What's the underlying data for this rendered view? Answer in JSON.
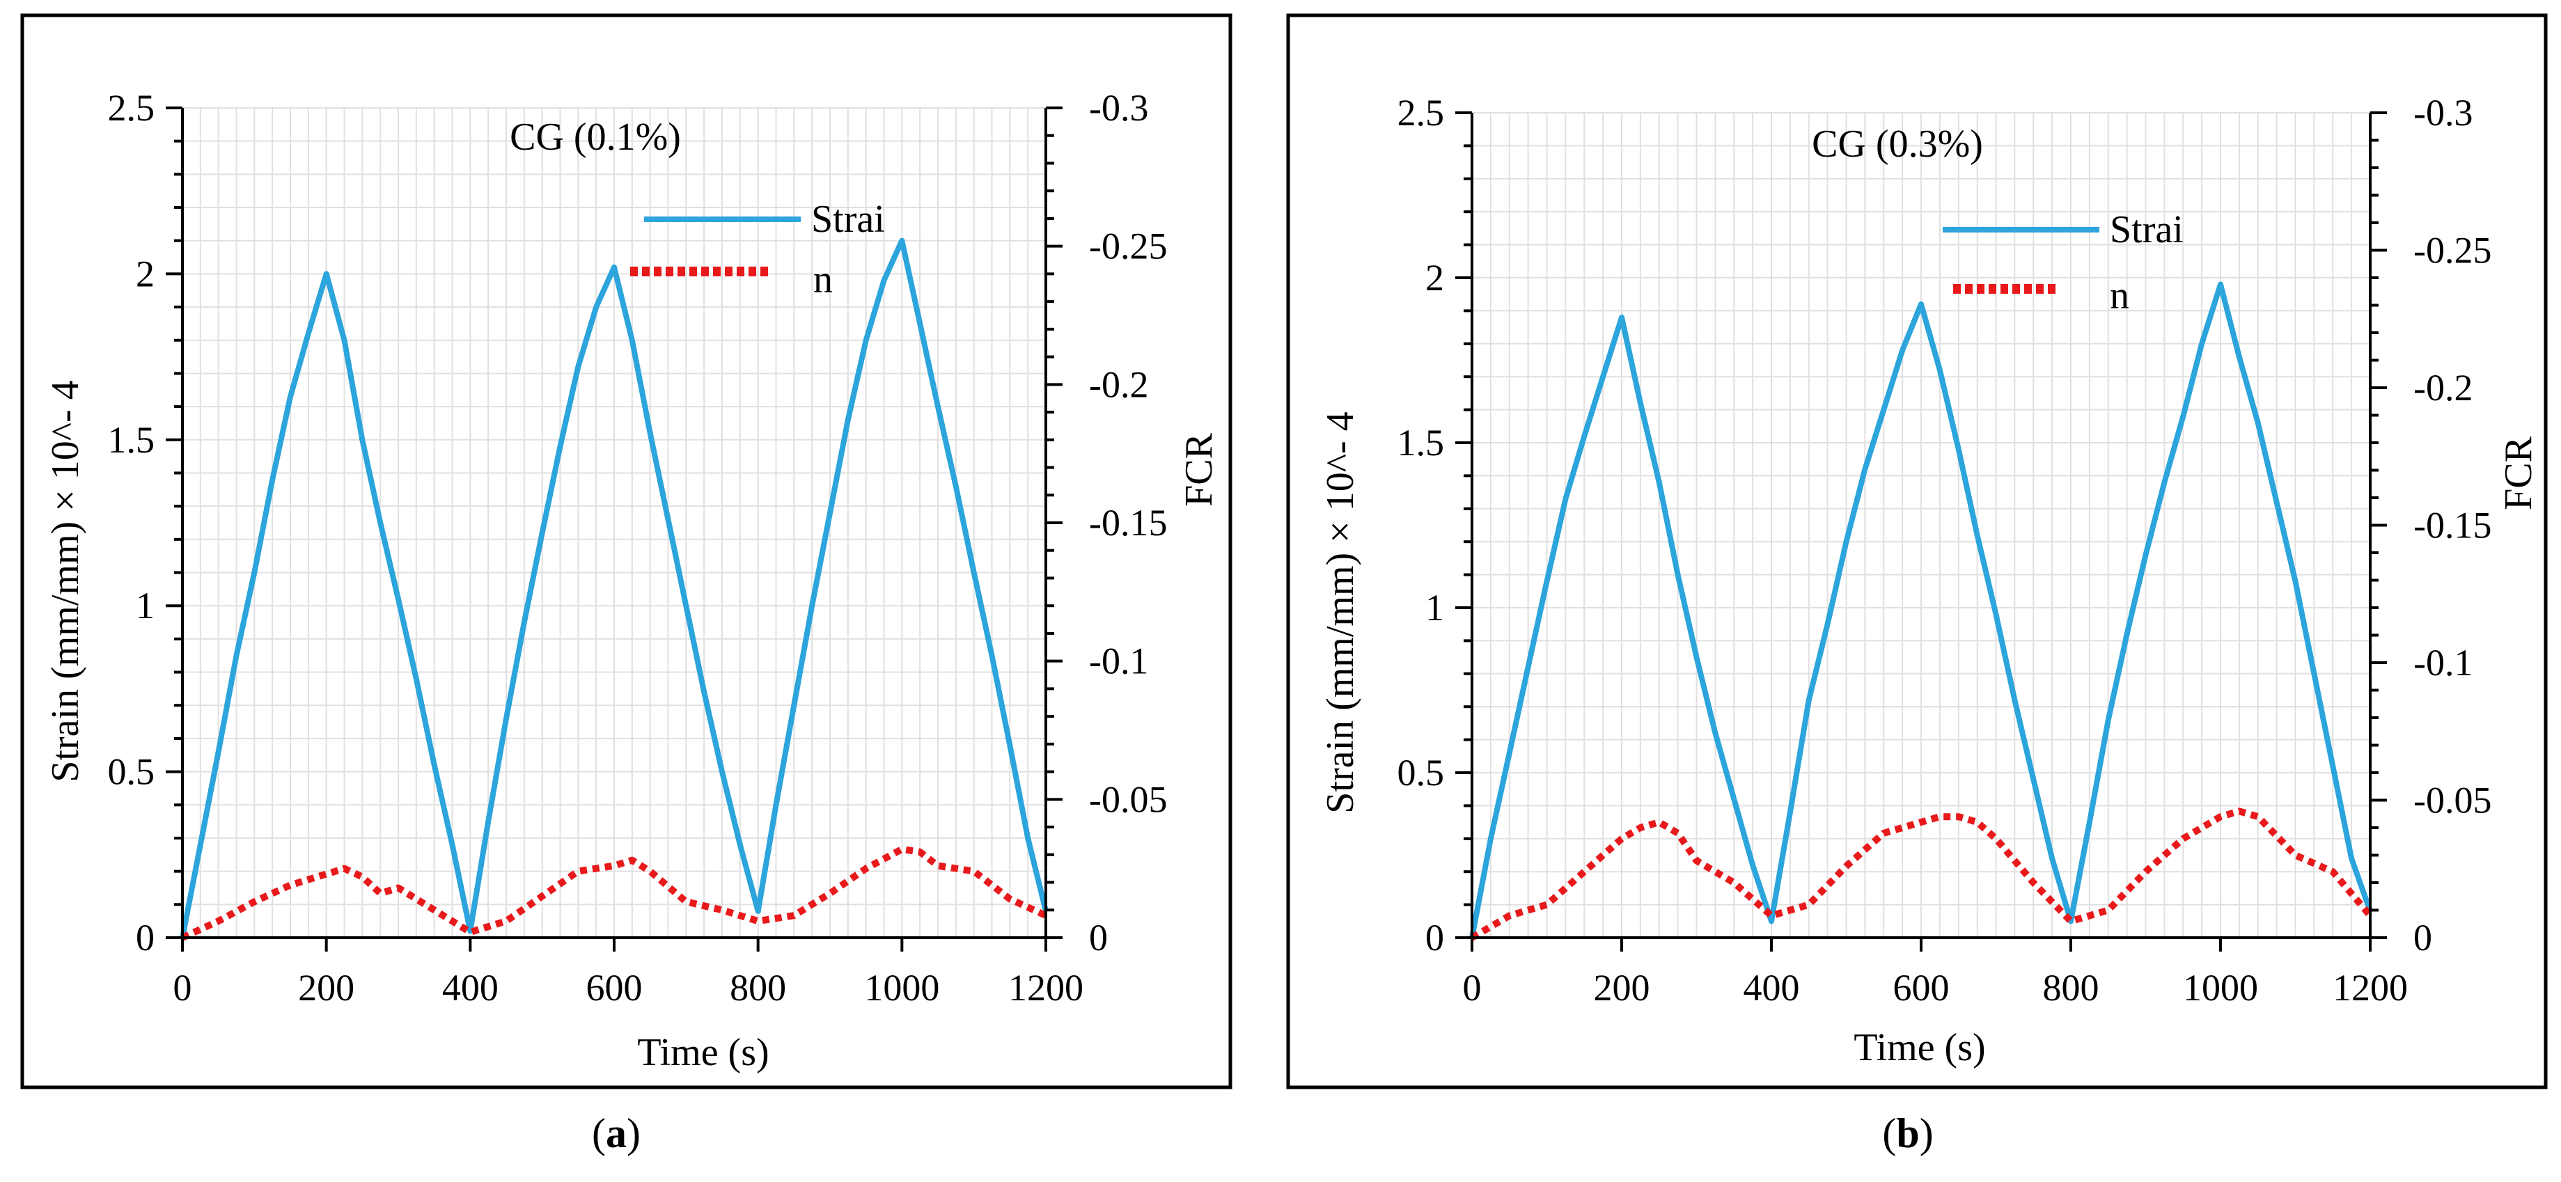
{
  "figure": {
    "captions": [
      "(a)",
      "(b)"
    ],
    "caption_letters": [
      "a",
      "b"
    ]
  },
  "chart_data": [
    {
      "type": "line",
      "title": "CG (0.1%)",
      "xlabel": "Time (s)",
      "ylabel": "Strain (mm/mm) × 10^- 4",
      "y2label": "FCR",
      "xlim": [
        0,
        1200
      ],
      "ylim": [
        0,
        2.5
      ],
      "y2lim": [
        0,
        -0.3
      ],
      "xticks": [
        "0",
        "200",
        "400",
        "600",
        "800",
        "1000",
        "1200"
      ],
      "yticks": [
        "0",
        "0.5",
        "1",
        "1.5",
        "2",
        "2.5"
      ],
      "y2ticks": [
        "0",
        "-0.05",
        "-0.1",
        "-0.15",
        "-0.2",
        "-0.25",
        "-0.3"
      ],
      "legend": [
        "Strai",
        "n"
      ],
      "legend_position": "top-right",
      "grid": true,
      "series": [
        {
          "name": "Strain",
          "axis": "left",
          "color": "#2ca4dc",
          "style": "solid",
          "x": [
            0,
            25,
            50,
            75,
            100,
            125,
            150,
            175,
            200,
            225,
            250,
            275,
            300,
            325,
            350,
            375,
            400,
            425,
            450,
            475,
            500,
            525,
            550,
            575,
            600,
            625,
            650,
            675,
            700,
            725,
            750,
            775,
            800,
            825,
            850,
            875,
            900,
            925,
            950,
            975,
            1000,
            1025,
            1050,
            1075,
            1100,
            1125,
            1150,
            1175,
            1200
          ],
          "y": [
            0.0,
            0.28,
            0.56,
            0.85,
            1.1,
            1.38,
            1.63,
            1.82,
            2.0,
            1.8,
            1.5,
            1.25,
            1.02,
            0.78,
            0.52,
            0.28,
            0.02,
            0.35,
            0.66,
            0.95,
            1.22,
            1.48,
            1.72,
            1.9,
            2.02,
            1.8,
            1.52,
            1.26,
            1.0,
            0.74,
            0.5,
            0.28,
            0.08,
            0.4,
            0.7,
            1.0,
            1.28,
            1.56,
            1.8,
            1.98,
            2.1,
            1.85,
            1.6,
            1.36,
            1.1,
            0.85,
            0.58,
            0.3,
            0.08
          ]
        },
        {
          "name": "FCR",
          "axis": "right",
          "color": "#e8191b",
          "style": "dotted",
          "x": [
            0,
            50,
            100,
            150,
            200,
            225,
            250,
            275,
            300,
            350,
            400,
            450,
            500,
            550,
            600,
            625,
            650,
            700,
            750,
            800,
            850,
            900,
            950,
            1000,
            1025,
            1050,
            1100,
            1150,
            1200
          ],
          "y": [
            0.0,
            -0.006,
            -0.013,
            -0.019,
            -0.023,
            -0.025,
            -0.022,
            -0.016,
            -0.018,
            -0.01,
            -0.002,
            -0.006,
            -0.015,
            -0.024,
            -0.026,
            -0.028,
            -0.024,
            -0.013,
            -0.01,
            -0.006,
            -0.008,
            -0.016,
            -0.025,
            -0.032,
            -0.031,
            -0.026,
            -0.024,
            -0.014,
            -0.008
          ]
        }
      ]
    },
    {
      "type": "line",
      "title": "CG (0.3%)",
      "xlabel": "Time (s)",
      "ylabel": "Strain (mm/mm) × 10^- 4",
      "y2label": "FCR",
      "xlim": [
        0,
        1200
      ],
      "ylim": [
        0,
        2.5
      ],
      "y2lim": [
        0,
        -0.3
      ],
      "xticks": [
        "0",
        "200",
        "400",
        "600",
        "800",
        "1000",
        "1200"
      ],
      "yticks": [
        "0",
        "0.5",
        "1",
        "1.5",
        "2",
        "2.5"
      ],
      "y2ticks": [
        "0",
        "-0.05",
        "-0.1",
        "-0.15",
        "-0.2",
        "-0.25",
        "-0.3"
      ],
      "legend": [
        "Strai",
        "n"
      ],
      "legend_position": "top-right",
      "grid": true,
      "series": [
        {
          "name": "Strain",
          "axis": "left",
          "color": "#2ca4dc",
          "style": "solid",
          "x": [
            0,
            25,
            50,
            75,
            100,
            125,
            150,
            175,
            200,
            225,
            250,
            275,
            300,
            325,
            350,
            375,
            400,
            425,
            450,
            475,
            500,
            525,
            550,
            575,
            600,
            625,
            650,
            675,
            700,
            725,
            750,
            775,
            800,
            825,
            850,
            875,
            900,
            925,
            950,
            975,
            1000,
            1025,
            1050,
            1075,
            1100,
            1125,
            1150,
            1175,
            1200
          ],
          "y": [
            0.0,
            0.3,
            0.56,
            0.82,
            1.08,
            1.33,
            1.52,
            1.7,
            1.88,
            1.62,
            1.38,
            1.1,
            0.85,
            0.62,
            0.42,
            0.22,
            0.05,
            0.38,
            0.72,
            0.95,
            1.2,
            1.42,
            1.6,
            1.78,
            1.92,
            1.72,
            1.48,
            1.22,
            0.98,
            0.72,
            0.48,
            0.24,
            0.05,
            0.35,
            0.66,
            0.92,
            1.16,
            1.38,
            1.58,
            1.8,
            1.98,
            1.76,
            1.56,
            1.32,
            1.08,
            0.8,
            0.52,
            0.24,
            0.08
          ]
        },
        {
          "name": "FCR",
          "axis": "right",
          "color": "#e8191b",
          "style": "dotted",
          "x": [
            0,
            50,
            100,
            150,
            200,
            225,
            250,
            275,
            300,
            350,
            400,
            450,
            500,
            550,
            600,
            625,
            650,
            675,
            700,
            750,
            800,
            850,
            900,
            950,
            1000,
            1025,
            1050,
            1100,
            1150,
            1200
          ],
          "y": [
            0.0,
            -0.008,
            -0.012,
            -0.024,
            -0.036,
            -0.04,
            -0.042,
            -0.038,
            -0.028,
            -0.02,
            -0.008,
            -0.012,
            -0.026,
            -0.038,
            -0.042,
            -0.044,
            -0.044,
            -0.042,
            -0.036,
            -0.02,
            -0.006,
            -0.01,
            -0.024,
            -0.036,
            -0.044,
            -0.046,
            -0.044,
            -0.03,
            -0.024,
            -0.008
          ]
        }
      ]
    }
  ]
}
